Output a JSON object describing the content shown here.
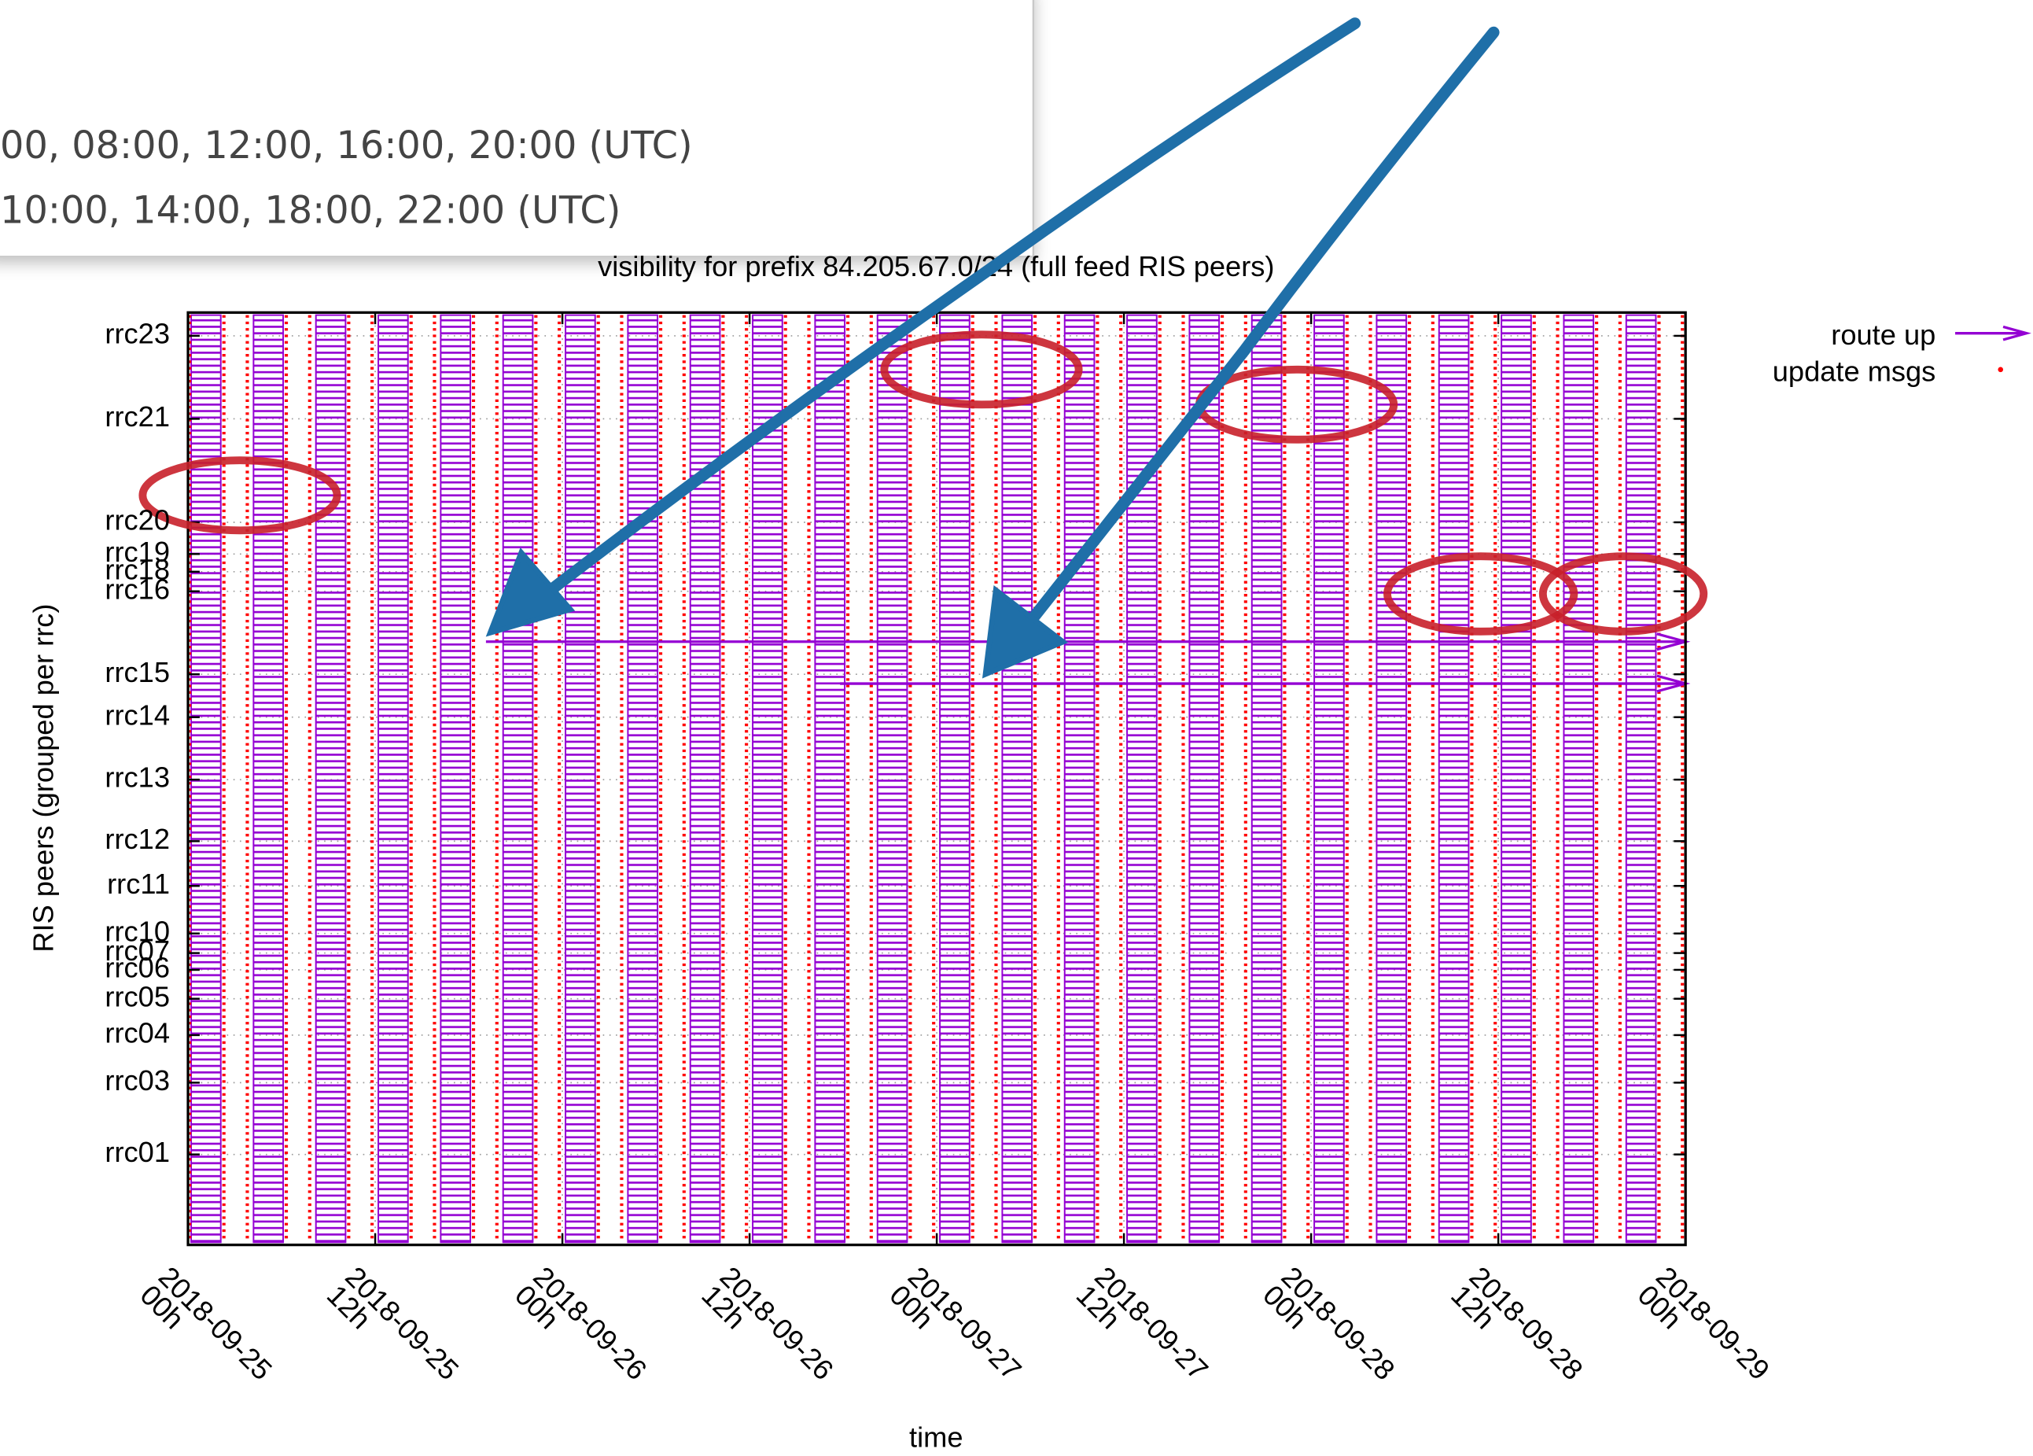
{
  "chart_data": {
    "type": "timeline",
    "title": "visibility for prefix 84.205.67.0/24 (full feed RIS peers)",
    "ylabel": "RIS peers (grouped per rrc)",
    "xlabel": "time",
    "xlim": [
      0,
      96
    ],
    "xticks": [
      {
        "value": 0,
        "label": "2018-09-25\n00h"
      },
      {
        "value": 12,
        "label": "2018-09-25\n12h"
      },
      {
        "value": 24,
        "label": "2018-09-26\n00h"
      },
      {
        "value": 36,
        "label": "2018-09-26\n12h"
      },
      {
        "value": 48,
        "label": "2018-09-27\n00h"
      },
      {
        "value": 60,
        "label": "2018-09-27\n12h"
      },
      {
        "value": 72,
        "label": "2018-09-28\n00h"
      },
      {
        "value": 84,
        "label": "2018-09-28\n12h"
      },
      {
        "value": 96,
        "label": "2018-09-29\n00h"
      }
    ],
    "ylim": [
      0,
      100
    ],
    "yticks": [
      {
        "value": 97.5,
        "label": "rrc23"
      },
      {
        "value": 88.6,
        "label": "rrc21"
      },
      {
        "value": 77.5,
        "label": "rrc20"
      },
      {
        "value": 74.1,
        "label": "rrc19"
      },
      {
        "value": 72.2,
        "label": "rrc18"
      },
      {
        "value": 70.1,
        "label": "rrc16"
      },
      {
        "value": 61.2,
        "label": "rrc15"
      },
      {
        "value": 56.6,
        "label": "rrc14"
      },
      {
        "value": 49.9,
        "label": "rrc13"
      },
      {
        "value": 43.3,
        "label": "rrc12"
      },
      {
        "value": 38.5,
        "label": "rrc11"
      },
      {
        "value": 33.4,
        "label": "rrc10"
      },
      {
        "value": 31.3,
        "label": "rrc07"
      },
      {
        "value": 29.5,
        "label": "rrc06"
      },
      {
        "value": 26.4,
        "label": "rrc05"
      },
      {
        "value": 22.5,
        "label": "rrc04"
      },
      {
        "value": 17.4,
        "label": "rrc03"
      },
      {
        "value": 9.7,
        "label": "rrc01"
      }
    ],
    "grid": true,
    "legend": "top right",
    "series": [
      {
        "name": "route up",
        "color": "#9400d3",
        "intervals": [
          [
            0.2,
            2.1
          ],
          [
            4.2,
            6.1
          ],
          [
            8.2,
            10.1
          ],
          [
            12.2,
            14.1
          ],
          [
            16.2,
            18.1
          ],
          [
            20.2,
            22.1
          ],
          [
            24.2,
            26.1
          ],
          [
            28.2,
            30.1
          ],
          [
            32.2,
            34.1
          ],
          [
            36.2,
            38.1
          ],
          [
            40.2,
            42.1
          ],
          [
            44.2,
            46.1
          ],
          [
            48.2,
            50.1
          ],
          [
            52.2,
            54.1
          ],
          [
            56.2,
            58.1
          ],
          [
            60.2,
            62.1
          ],
          [
            64.2,
            66.1
          ],
          [
            68.2,
            70.1
          ],
          [
            72.2,
            74.1
          ],
          [
            76.2,
            78.1
          ],
          [
            80.2,
            82.1
          ],
          [
            84.2,
            86.1
          ],
          [
            88.2,
            90.1
          ],
          [
            92.2,
            94.1
          ]
        ],
        "segments": [
          {
            "x": [
              19.1,
              96
            ],
            "y": 64.7
          },
          {
            "x": [
              41.8,
              96
            ],
            "y": 60.2
          }
        ]
      },
      {
        "name": "update msgs",
        "color": "#ff0000",
        "x": [
          0.1,
          2.3,
          3.8,
          6.3,
          7.8,
          10.3,
          11.8,
          14.3,
          15.8,
          18.3,
          19.8,
          22.3,
          23.8,
          26.3,
          27.8,
          30.3,
          31.8,
          34.3,
          35.8,
          38.3,
          39.8,
          42.3,
          43.8,
          46.3,
          47.8,
          50.3,
          51.8,
          54.3,
          55.8,
          58.3,
          59.8,
          62.3,
          63.8,
          66.3,
          67.8,
          70.3,
          71.8,
          74.3,
          75.8,
          78.3,
          79.8,
          82.3,
          83.8,
          86.3,
          87.8,
          90.3,
          91.8,
          94.3,
          95.8
        ]
      }
    ]
  },
  "tooltip": {
    "lines": [
      "00, 08:00, 12:00, 16:00, 20:00 (UTC)",
      "10:00, 14:00, 18:00, 22:00 (UTC)"
    ]
  }
}
